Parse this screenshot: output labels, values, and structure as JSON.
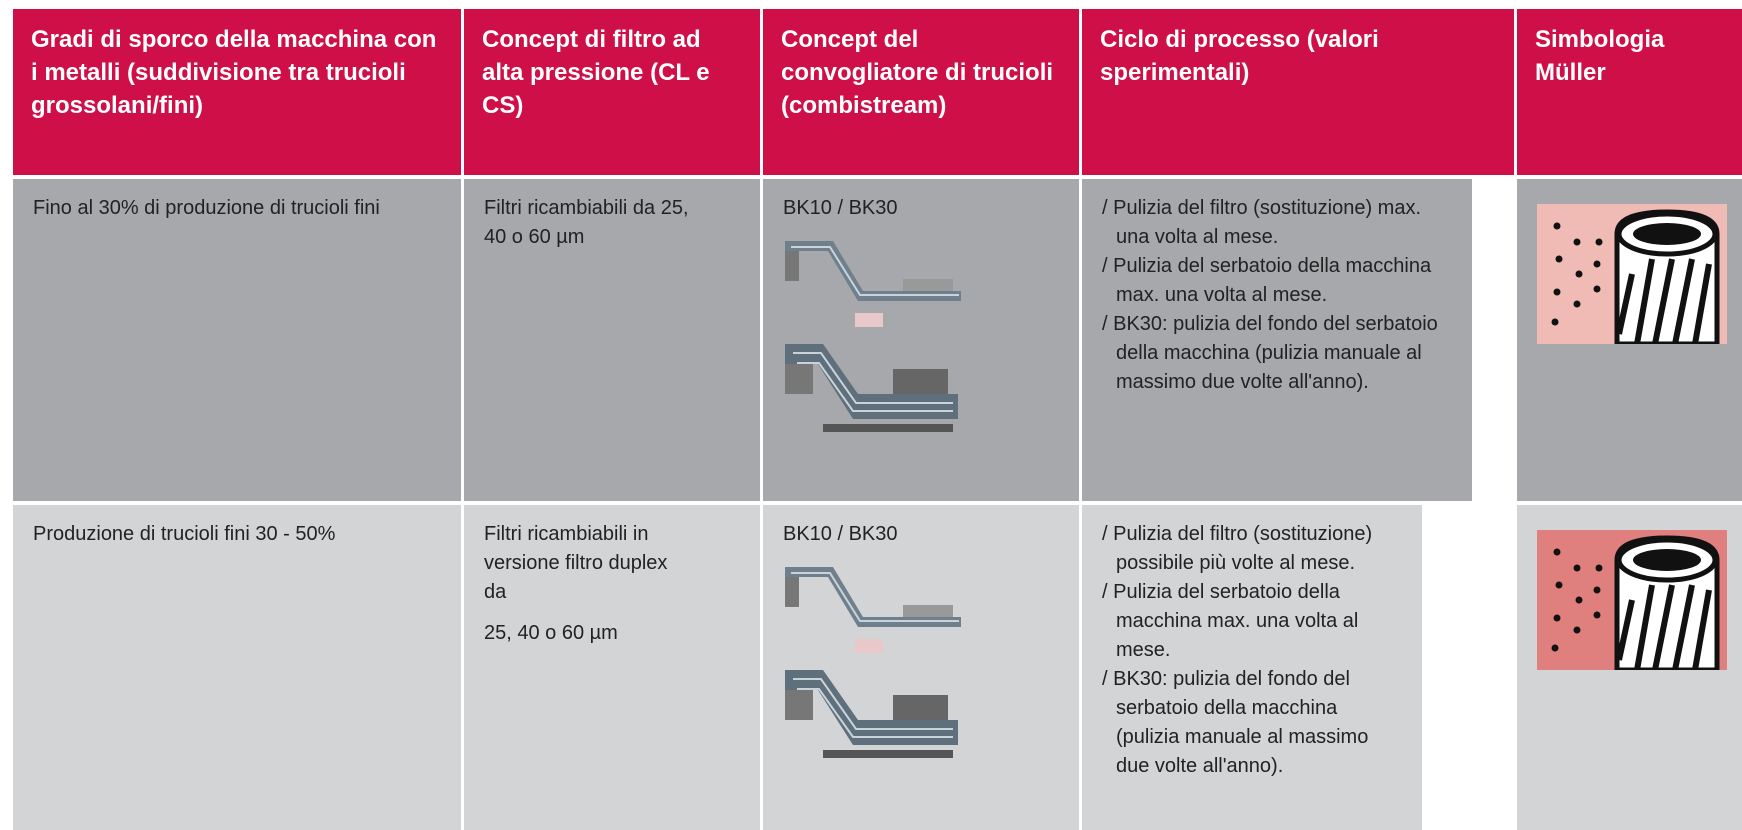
{
  "header": [
    "Gradi di sporco della macchina con i metalli (suddivisione tra trucioli grossolani/fini)",
    "Concept di filtro ad alta pressione (CL e CS)",
    "Concept del convogliatore di trucioli (combistream)",
    "Ciclo di processo (valori sperimentali)",
    "Simbologia Müller"
  ],
  "rows": [
    {
      "dirt": "Fino al 30% di produzione di trucioli fini",
      "filter": [
        "Filtri ricambiabili da 25, 40 o 60 µm"
      ],
      "conveyor": "BK10 / BK30",
      "cycle": [
        "/ Pulizia del filtro (sostituzione) max. una volta al mese.",
        "/ Pulizia del serbatoio della macchina max. una volta al mese.",
        "/ BK30: pulizia del fondo del serbatoio della macchina (pulizia manuale al massimo due volte all'anno)."
      ]
    },
    {
      "dirt": "Produzione di trucioli fini 30 - 50%",
      "filter": [
        "Filtri ricambiabili in versione filtro duplex da",
        "25, 40 o 60 µm"
      ],
      "conveyor": "BK10 / BK30",
      "cycle": [
        "/ Pulizia del filtro (sostituzione) possibile più volte al mese.",
        "/ Pulizia del serbatoio della macchina max. una volta al mese.",
        "/ BK30: pulizia del fondo del serbatoio della macchina (pulizia manuale al massimo due volte all'anno)."
      ]
    }
  ]
}
